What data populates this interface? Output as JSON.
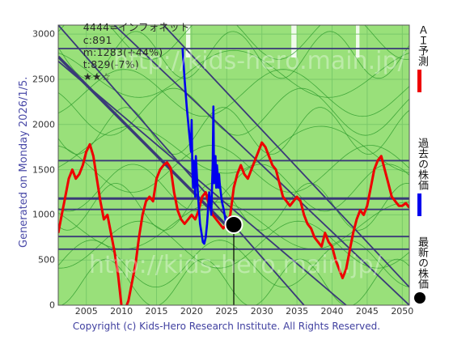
{
  "header": {
    "stock": "4444=インフォネット",
    "current": "c:891",
    "max": "m:1283(+44%)",
    "target": "t:829(-7%)",
    "stars": "★★☆"
  },
  "side_note": "Generated on Monday 2026/1/5.",
  "copyright": "Copyright (c) Kids-Hero Research Institute. All Rights Reserved.",
  "watermarks": [
    "http://kids-hero.main.jp/",
    "http://kids-hero.main.jp/"
  ],
  "legend": {
    "forecast": "ＡＩ予測",
    "past": "過去の株価",
    "latest": "最新の株価"
  },
  "colors": {
    "background_green": "#99e07a",
    "forecast_line": "#ee0000",
    "past_line": "#0000ee",
    "channel_line": "#3a3a78",
    "thin_green": "#2a9a2a",
    "latest_dot": "#000000"
  },
  "chart_data": {
    "type": "line",
    "xlim": [
      2001,
      2051
    ],
    "ylim": [
      0,
      3100
    ],
    "xticks": [
      2005,
      2010,
      2015,
      2020,
      2025,
      2030,
      2035,
      2040,
      2045,
      2050
    ],
    "yticks": [
      0,
      500,
      1000,
      1500,
      2000,
      2500,
      3000
    ],
    "grid": true,
    "horizontal_lines": [
      2840,
      1600,
      1180,
      1060,
      760,
      620
    ],
    "diagonal_lines": [
      {
        "x": [
          2001,
          2036
        ],
        "y": [
          3100,
          0
        ]
      },
      {
        "x": [
          2001,
          2042
        ],
        "y": [
          2700,
          0
        ]
      },
      {
        "x": [
          2009,
          2051
        ],
        "y": [
          3100,
          0
        ]
      },
      {
        "x": [
          2016,
          2051
        ],
        "y": [
          3100,
          200
        ]
      },
      {
        "x": [
          2001,
          2026
        ],
        "y": [
          2750,
          800
        ]
      }
    ],
    "series": [
      {
        "name": "ＡＩ予測",
        "x": [
          2001,
          2001.5,
          2002,
          2002.5,
          2003,
          2003.5,
          2004,
          2004.5,
          2005,
          2005.5,
          2006,
          2006.5,
          2007,
          2007.5,
          2008,
          2008.5,
          2009,
          2009.5,
          2010,
          2010.5,
          2011,
          2011.5,
          2012,
          2012.5,
          2013,
          2013.5,
          2014,
          2014.5,
          2015,
          2015.5,
          2016,
          2016.5,
          2017,
          2017.5,
          2018,
          2018.5,
          2019,
          2019.5,
          2020,
          2020.5,
          2021,
          2021.5,
          2022,
          2022.5,
          2023,
          2023.5,
          2024,
          2024.5,
          2025,
          2025.5,
          2026,
          2026.5,
          2027,
          2027.5,
          2028,
          2028.5,
          2029,
          2029.5,
          2030,
          2030.5,
          2031,
          2031.5,
          2032,
          2032.5,
          2033,
          2033.5,
          2034,
          2034.5,
          2035,
          2035.5,
          2036,
          2036.5,
          2037,
          2037.5,
          2038,
          2038.5,
          2039,
          2039.5,
          2040,
          2040.5,
          2041,
          2041.5,
          2042,
          2042.5,
          2043,
          2043.5,
          2044,
          2044.5,
          2045,
          2045.5,
          2046,
          2046.5,
          2047,
          2047.5,
          2048,
          2048.5,
          2049,
          2049.5,
          2050,
          2050.5,
          2051
        ],
        "y": [
          800,
          1000,
          1200,
          1400,
          1500,
          1400,
          1450,
          1550,
          1700,
          1780,
          1650,
          1400,
          1150,
          950,
          1000,
          800,
          600,
          350,
          0,
          -50,
          50,
          250,
          450,
          750,
          1000,
          1150,
          1200,
          1150,
          1400,
          1500,
          1550,
          1580,
          1520,
          1250,
          1050,
          950,
          900,
          950,
          1000,
          950,
          1050,
          1200,
          1250,
          1100,
          1000,
          950,
          900,
          850,
          900,
          1000,
          1300,
          1450,
          1550,
          1450,
          1400,
          1500,
          1600,
          1700,
          1800,
          1750,
          1650,
          1550,
          1500,
          1350,
          1200,
          1150,
          1100,
          1150,
          1200,
          1150,
          1000,
          900,
          850,
          750,
          700,
          650,
          800,
          700,
          650,
          500,
          400,
          300,
          400,
          600,
          800,
          950,
          1050,
          1000,
          1100,
          1300,
          1500,
          1600,
          1650,
          1500,
          1350,
          1200,
          1150,
          1100,
          1100,
          1130,
          1080
        ]
      },
      {
        "name": "過去の株価",
        "x": [
          2018.7,
          2019,
          2019.3,
          2019.6,
          2019.9,
          2020,
          2020.1,
          2020.2,
          2020.3,
          2020.4,
          2020.5,
          2020.6,
          2020.8,
          2021,
          2021.2,
          2021.4,
          2021.6,
          2021.8,
          2022,
          2022.2,
          2022.5,
          2022.8,
          2023,
          2023.1,
          2023.2,
          2023.3,
          2023.4,
          2023.5,
          2023.6,
          2023.7,
          2023.8,
          2023.9,
          2024,
          2024.3,
          2024.6,
          2024.9,
          2025.2,
          2025.5,
          2025.8,
          2026
        ],
        "y": [
          2850,
          2500,
          2200,
          1950,
          1700,
          2050,
          1500,
          1300,
          1600,
          1400,
          1200,
          1650,
          1350,
          1100,
          900,
          800,
          700,
          680,
          750,
          900,
          1250,
          1000,
          1600,
          2200,
          1350,
          1500,
          1650,
          1300,
          1550,
          1450,
          1300,
          1450,
          1350,
          1150,
          1050,
          900,
          850,
          870,
          860,
          891
        ]
      }
    ],
    "latest_point": {
      "x": 2026,
      "y": 891
    }
  }
}
